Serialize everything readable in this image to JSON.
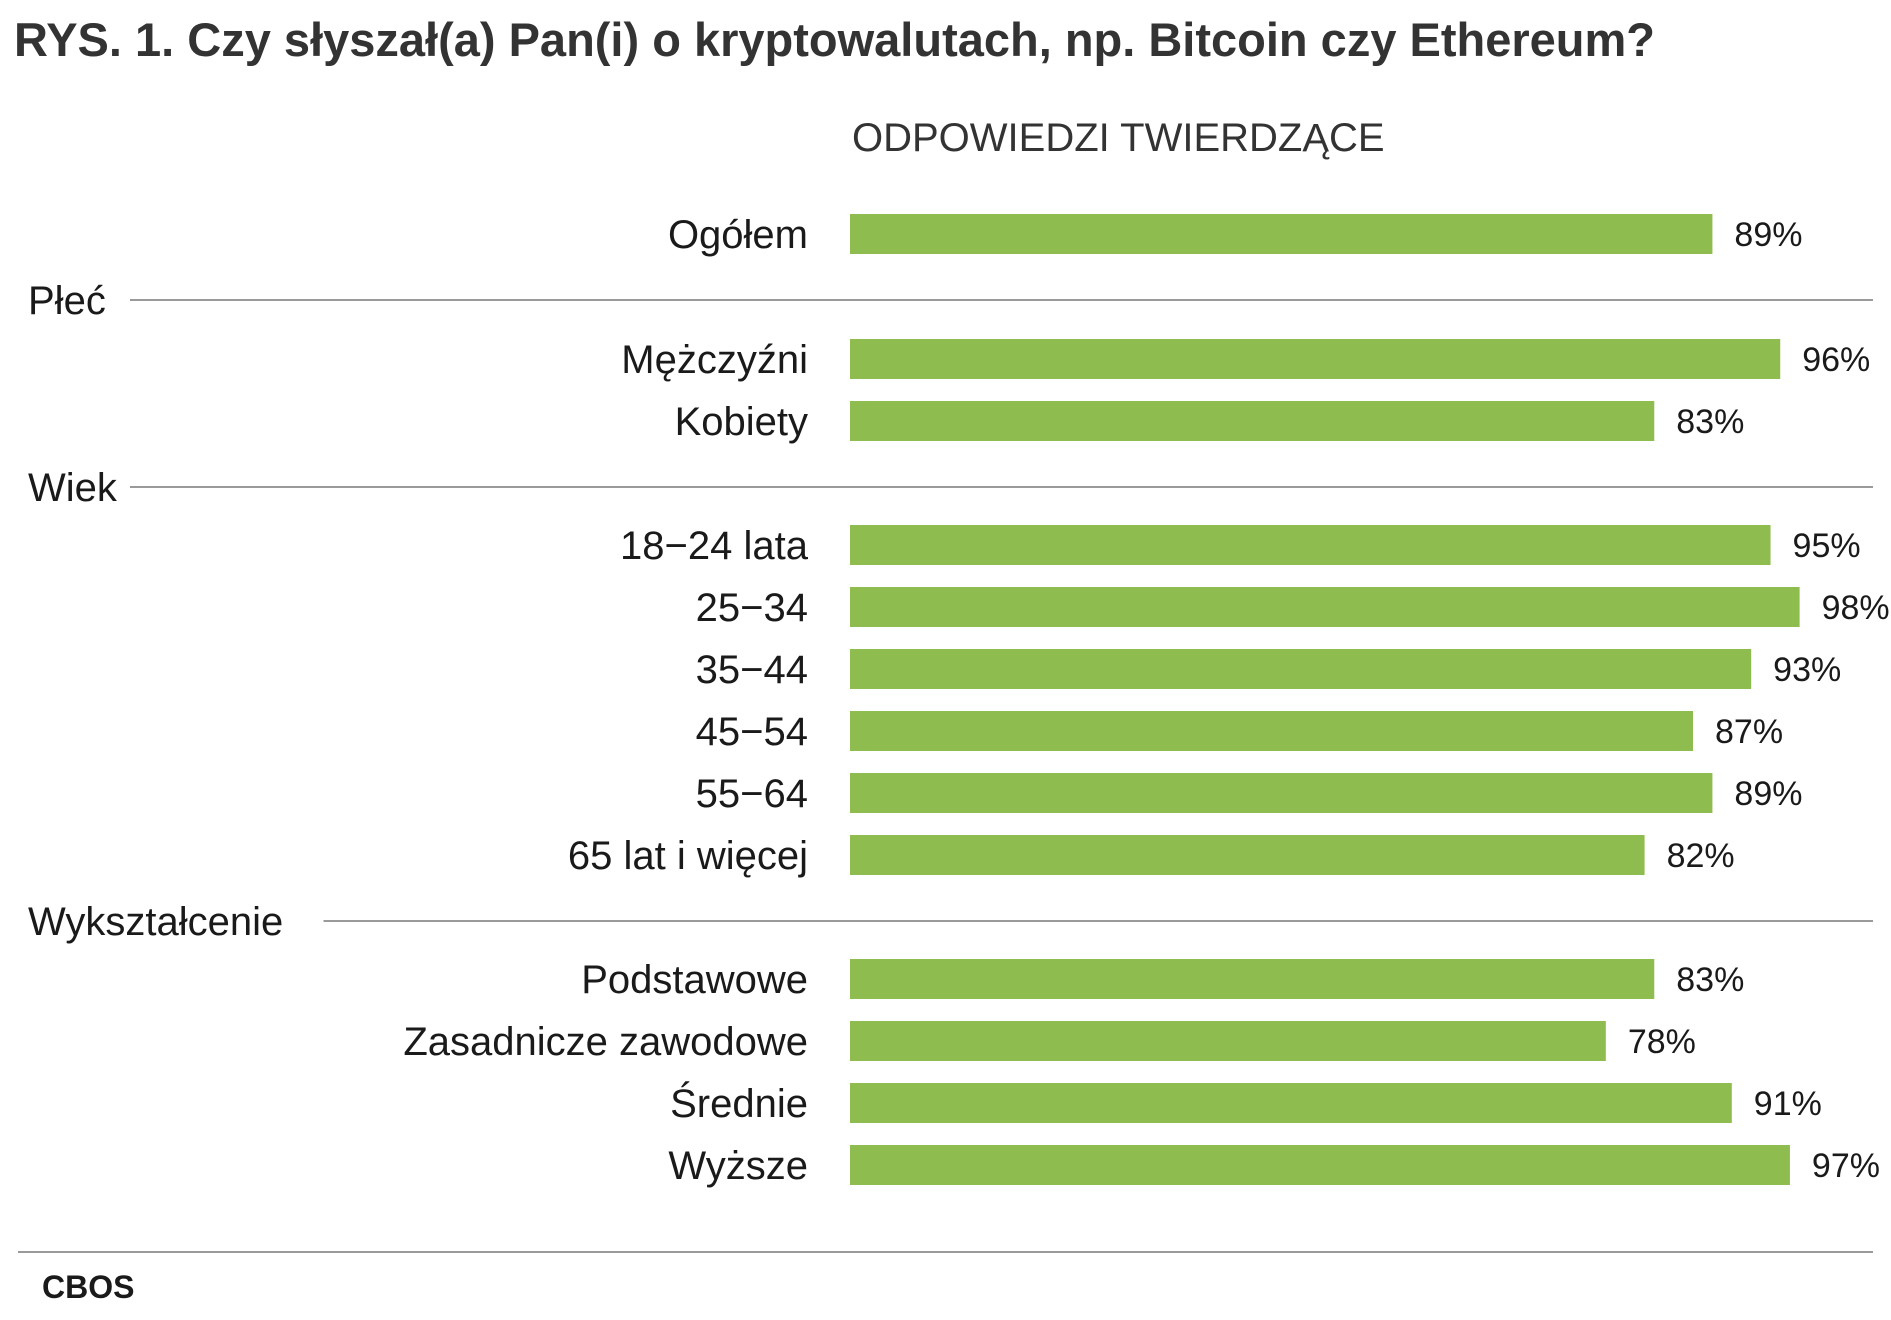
{
  "chart_data": {
    "type": "bar",
    "orientation": "horizontal",
    "title": "RYS. 1. Czy słyszał(a) Pan(i) o kryptowalutach, np. Bitcoin czy Ethereum?",
    "subtitle": "ODPOWIEDZI TWIERDZĄCE",
    "source": "CBOS",
    "bar_color": "#8fbc4f",
    "value_suffix": "%",
    "xlim": [
      0,
      100
    ],
    "grid": false,
    "rows": [
      {
        "type": "bar",
        "label": "Ogółem",
        "value": 89
      },
      {
        "type": "group",
        "label": "Płeć"
      },
      {
        "type": "bar",
        "label": "Mężczyźni",
        "value": 96
      },
      {
        "type": "bar",
        "label": "Kobiety",
        "value": 83
      },
      {
        "type": "group",
        "label": "Wiek"
      },
      {
        "type": "bar",
        "label": "18−24 lata",
        "value": 95
      },
      {
        "type": "bar",
        "label": "25−34",
        "value": 98
      },
      {
        "type": "bar",
        "label": "35−44",
        "value": 93
      },
      {
        "type": "bar",
        "label": "45−54",
        "value": 87
      },
      {
        "type": "bar",
        "label": "55−64",
        "value": 89
      },
      {
        "type": "bar",
        "label": "65 lat i więcej",
        "value": 82
      },
      {
        "type": "group",
        "label": "Wykształcenie"
      },
      {
        "type": "bar",
        "label": "Podstawowe",
        "value": 83
      },
      {
        "type": "bar",
        "label": "Zasadnicze zawodowe",
        "value": 78
      },
      {
        "type": "bar",
        "label": "Średnie",
        "value": 91
      },
      {
        "type": "bar",
        "label": "Wyższe",
        "value": 97
      }
    ]
  }
}
